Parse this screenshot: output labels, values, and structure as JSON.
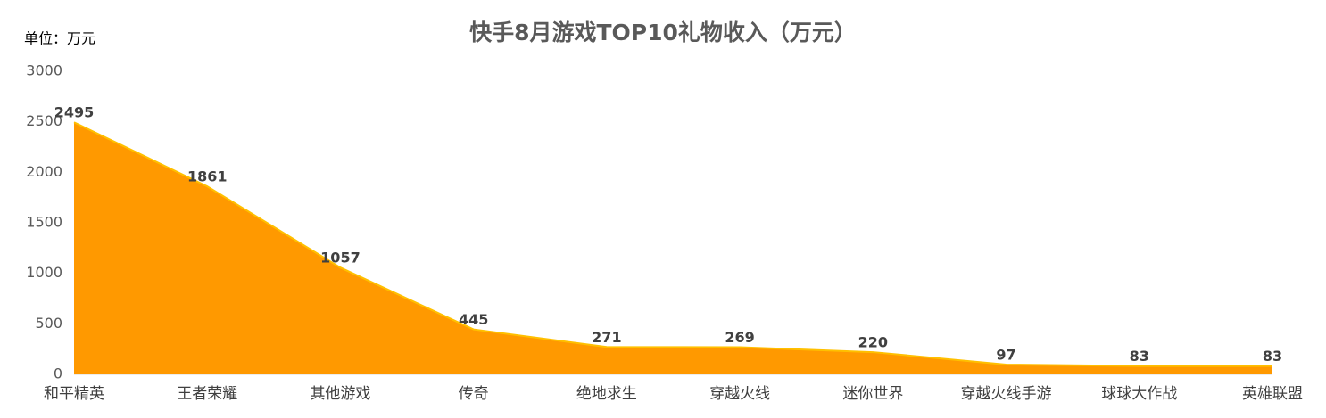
{
  "chart_data": {
    "type": "area",
    "title": "快手8月游戏TOP10礼物收入（万元）",
    "unit_label": "单位：万元",
    "categories": [
      "和平精英",
      "王者荣耀",
      "其他游戏",
      "传奇",
      "绝地求生",
      "穿越火线",
      "迷你世界",
      "穿越火线手游",
      "球球大作战",
      "英雄联盟"
    ],
    "values": [
      2495,
      1861,
      1057,
      445,
      271,
      269,
      220,
      97,
      83,
      83
    ],
    "color": "#ff9900",
    "line_color": "#ffc000",
    "ylim": [
      0,
      3000
    ],
    "yticks": [
      0,
      500,
      1000,
      1500,
      2000,
      2500,
      3000
    ],
    "grid": false
  }
}
